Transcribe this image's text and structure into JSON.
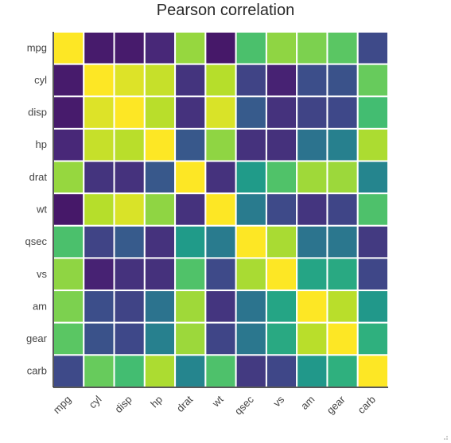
{
  "chart_data": {
    "type": "heatmap",
    "title": "Pearson correlation",
    "x_labels": [
      "mpg",
      "cyl",
      "disp",
      "hp",
      "drat",
      "wt",
      "qsec",
      "vs",
      "am",
      "gear",
      "carb"
    ],
    "y_labels": [
      "mpg",
      "cyl",
      "disp",
      "hp",
      "drat",
      "wt",
      "qsec",
      "vs",
      "am",
      "gear",
      "carb"
    ],
    "colorscale": "viridis",
    "zmin": -1,
    "zmax": 1,
    "show_colorbar": false,
    "z": [
      [
        1.0,
        -0.85,
        -0.85,
        -0.78,
        0.68,
        -0.87,
        0.42,
        0.66,
        0.6,
        0.48,
        -0.55
      ],
      [
        -0.85,
        1.0,
        0.9,
        0.83,
        -0.7,
        0.78,
        -0.59,
        -0.81,
        -0.52,
        -0.49,
        0.53
      ],
      [
        -0.85,
        0.9,
        1.0,
        0.79,
        -0.71,
        0.89,
        -0.43,
        -0.71,
        -0.59,
        -0.56,
        0.39
      ],
      [
        -0.78,
        0.83,
        0.79,
        1.0,
        -0.45,
        0.66,
        -0.71,
        -0.72,
        -0.24,
        -0.13,
        0.75
      ],
      [
        0.68,
        -0.7,
        -0.71,
        -0.45,
        1.0,
        -0.71,
        0.09,
        0.44,
        0.71,
        0.7,
        -0.09
      ],
      [
        -0.87,
        0.78,
        0.89,
        0.66,
        -0.71,
        1.0,
        -0.17,
        -0.55,
        -0.69,
        -0.58,
        0.43
      ],
      [
        0.42,
        -0.59,
        -0.43,
        -0.71,
        0.09,
        -0.17,
        1.0,
        0.74,
        -0.23,
        -0.21,
        -0.66
      ],
      [
        0.66,
        -0.81,
        -0.71,
        -0.72,
        0.44,
        -0.55,
        0.74,
        1.0,
        0.17,
        0.21,
        -0.57
      ],
      [
        0.6,
        -0.52,
        -0.59,
        -0.24,
        0.71,
        -0.69,
        -0.23,
        0.17,
        1.0,
        0.79,
        0.06
      ],
      [
        0.48,
        -0.49,
        -0.56,
        -0.13,
        0.7,
        -0.58,
        -0.21,
        0.21,
        0.79,
        1.0,
        0.27
      ],
      [
        -0.55,
        0.53,
        0.39,
        0.75,
        -0.09,
        0.43,
        -0.66,
        -0.57,
        0.06,
        0.27,
        1.0
      ]
    ]
  }
}
